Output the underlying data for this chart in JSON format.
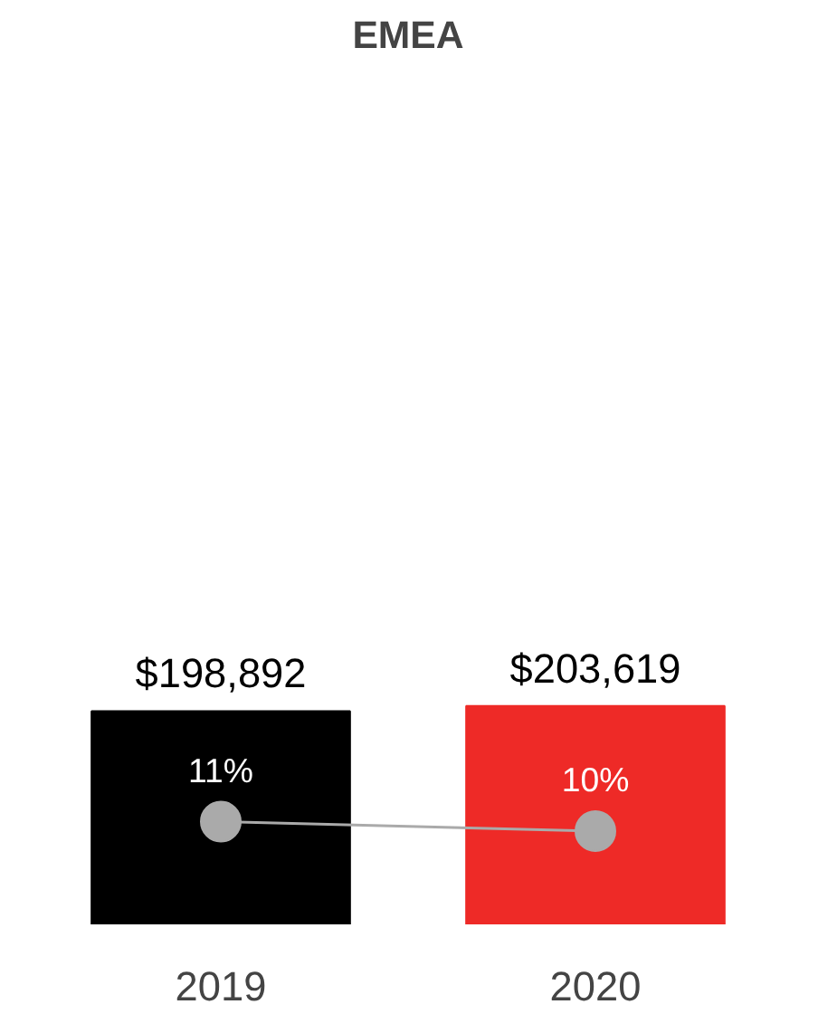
{
  "chart_data": {
    "type": "bar",
    "title": "EMEA",
    "categories": [
      "2019",
      "2020"
    ],
    "series": [
      {
        "colors": [
          "#000000",
          "#ee2a27"
        ],
        "values": [
          198892,
          203619
        ],
        "value_labels": [
          "$198,892",
          "$203,619"
        ]
      },
      {
        "type": "line",
        "axis": "y2",
        "color": "#aaaaaa",
        "values": [
          11,
          10
        ],
        "value_labels": [
          "11%",
          "10%"
        ]
      }
    ],
    "marker": "circle"
  }
}
